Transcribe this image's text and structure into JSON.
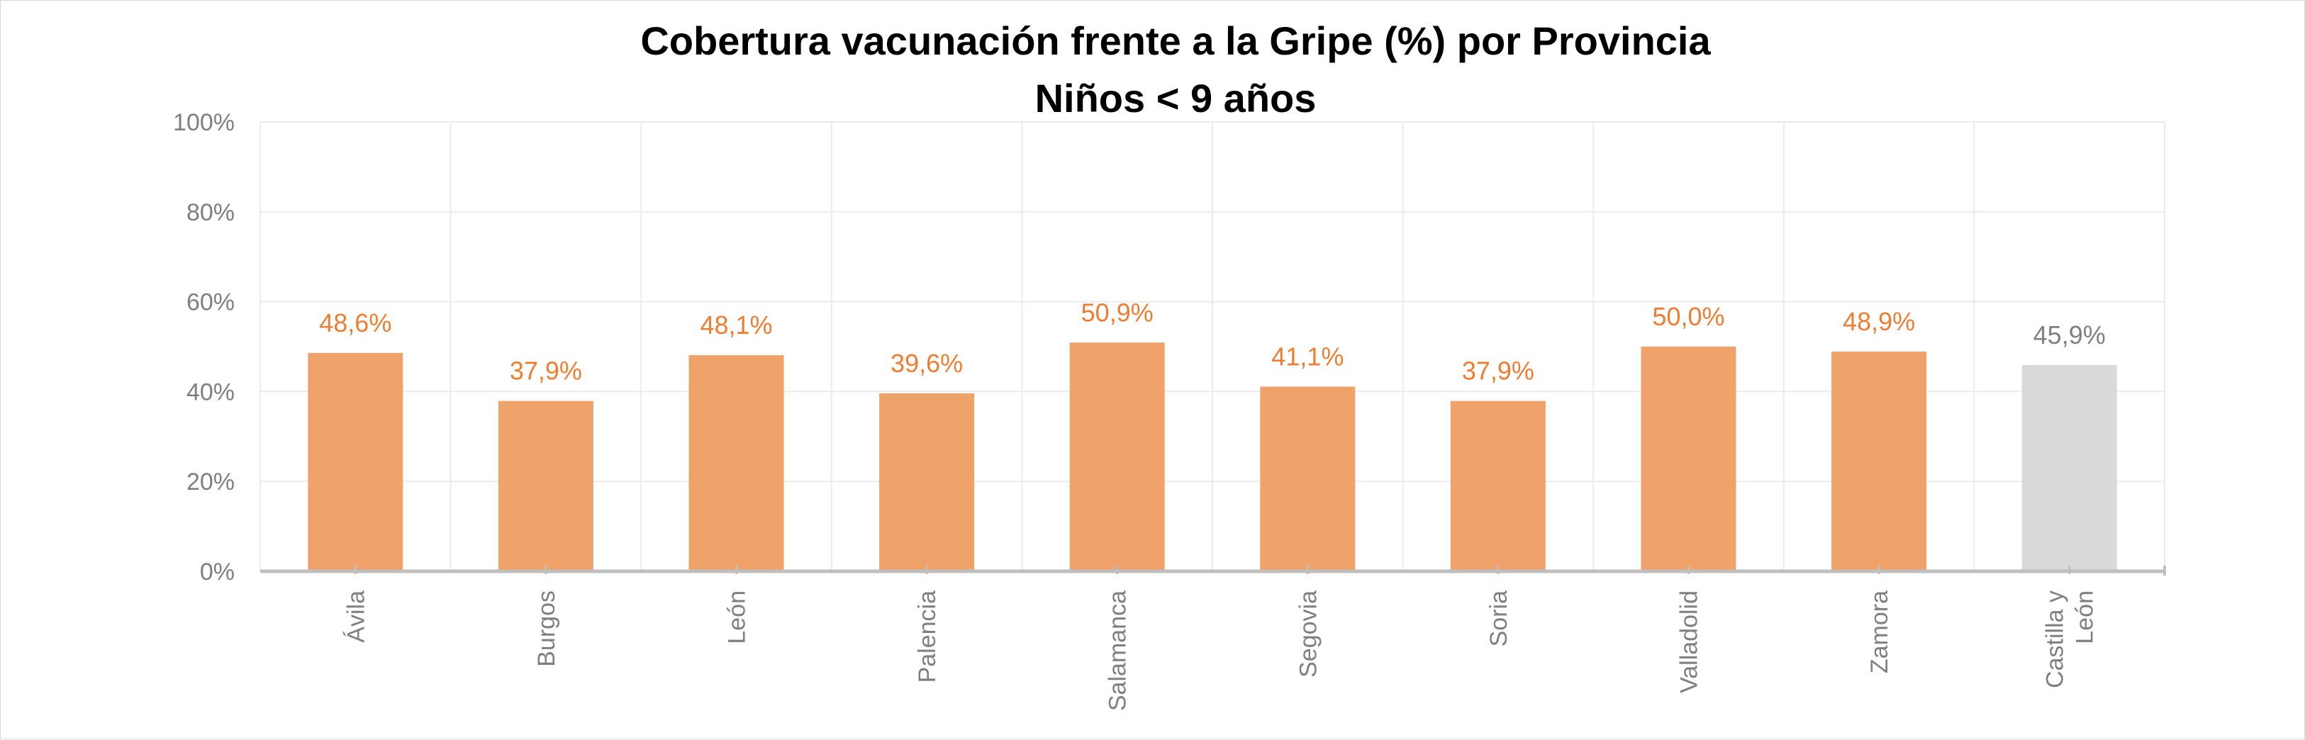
{
  "chart_data": {
    "type": "bar",
    "title": "Cobertura vacunación frente a la Gripe (%) por Provincia",
    "subtitle": "Niños < 9 años",
    "xlabel": "",
    "ylabel": "",
    "ylim": [
      0,
      100
    ],
    "yticks": [
      "0%",
      "20%",
      "40%",
      "60%",
      "80%",
      "100%"
    ],
    "grid": true,
    "categories": [
      "Ávila",
      "Burgos",
      "León",
      "Palencia",
      "Salamanca",
      "Segovia",
      "Soria",
      "Valladolid",
      "Zamora",
      "Castilla y León"
    ],
    "category_lines": [
      [
        "Ávila"
      ],
      [
        "Burgos"
      ],
      [
        "León"
      ],
      [
        "Palencia"
      ],
      [
        "Salamanca"
      ],
      [
        "Segovia"
      ],
      [
        "Soria"
      ],
      [
        "Valladolid"
      ],
      [
        "Zamora"
      ],
      [
        "Castilla y",
        "León"
      ]
    ],
    "values": [
      48.6,
      37.9,
      48.1,
      39.6,
      50.9,
      41.1,
      37.9,
      50.0,
      48.9,
      45.9
    ],
    "value_labels": [
      "48,6%",
      "37,9%",
      "48,1%",
      "39,6%",
      "50,9%",
      "41,1%",
      "37,9%",
      "50,0%",
      "48,9%",
      "45,9%"
    ],
    "colors": {
      "province_bar": "#f0a26b",
      "province_label": "#ed7d31",
      "total_bar": "#d9d9d9",
      "total_label": "#7f7f7f",
      "grid": "#ebebeb",
      "axis": "#bfbfbf"
    },
    "highlight_index": 9
  }
}
